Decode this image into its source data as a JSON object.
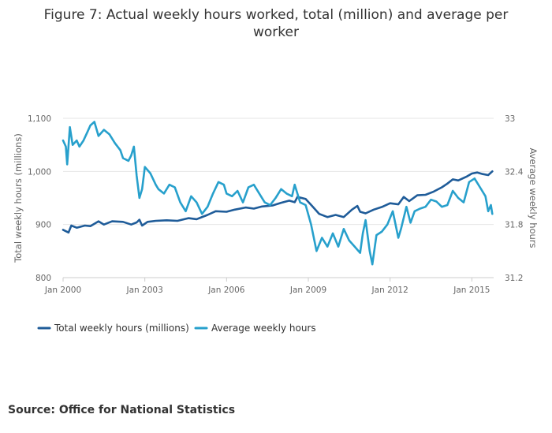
{
  "chart_data": {
    "type": "line",
    "title_lines": [
      "Figure 7: Actual weekly hours worked, total (million) and average per",
      "worker"
    ],
    "x_tick_labels": [
      "Jan 2000",
      "Jan 2003",
      "Jan 2006",
      "Jan 2009",
      "Jan 2012",
      "Jan 2015"
    ],
    "x_ticks": [
      2000,
      2003,
      2006,
      2009,
      2012,
      2015
    ],
    "xlim": [
      2000,
      2015.8
    ],
    "left_axis": {
      "label": "Total weekly hours (millions)",
      "ylim": [
        800,
        1100
      ],
      "ticks": [
        800,
        900,
        1000,
        1100
      ],
      "tick_labels": [
        "800",
        "900",
        "1,000",
        "1,100"
      ]
    },
    "right_axis": {
      "label": "Average weekly hours",
      "ylim": [
        31.2,
        33
      ],
      "ticks": [
        31.2,
        31.8,
        32.4,
        33
      ],
      "tick_labels": [
        "31.2",
        "31.8",
        "32.4",
        "33"
      ]
    },
    "grid": true,
    "legend_position": "bottom-left",
    "series": [
      {
        "name": "Total weekly hours (millions)",
        "axis": "left",
        "color": "#1f5c99",
        "points": [
          [
            2000,
            890
          ],
          [
            2000.2,
            885
          ],
          [
            2000.3,
            898
          ],
          [
            2000.5,
            894
          ],
          [
            2000.8,
            898
          ],
          [
            2001,
            897
          ],
          [
            2001.3,
            906
          ],
          [
            2001.5,
            900
          ],
          [
            2001.8,
            906
          ],
          [
            2002.2,
            905
          ],
          [
            2002.5,
            900
          ],
          [
            2002.7,
            904
          ],
          [
            2002.8,
            909
          ],
          [
            2002.9,
            898
          ],
          [
            2003.1,
            905
          ],
          [
            2003.4,
            907
          ],
          [
            2003.8,
            908
          ],
          [
            2004.2,
            907
          ],
          [
            2004.6,
            912
          ],
          [
            2004.9,
            910
          ],
          [
            2005.3,
            918
          ],
          [
            2005.6,
            925
          ],
          [
            2006,
            924
          ],
          [
            2006.3,
            928
          ],
          [
            2006.7,
            932
          ],
          [
            2007,
            930
          ],
          [
            2007.3,
            934
          ],
          [
            2007.7,
            936
          ],
          [
            2008,
            941
          ],
          [
            2008.3,
            945
          ],
          [
            2008.5,
            942
          ],
          [
            2008.6,
            952
          ],
          [
            2008.9,
            948
          ],
          [
            2009.1,
            937
          ],
          [
            2009.4,
            920
          ],
          [
            2009.7,
            914
          ],
          [
            2010,
            918
          ],
          [
            2010.3,
            914
          ],
          [
            2010.6,
            928
          ],
          [
            2010.8,
            935
          ],
          [
            2010.9,
            924
          ],
          [
            2011.1,
            921
          ],
          [
            2011.4,
            928
          ],
          [
            2011.7,
            933
          ],
          [
            2012,
            940
          ],
          [
            2012.3,
            938
          ],
          [
            2012.5,
            952
          ],
          [
            2012.7,
            944
          ],
          [
            2013,
            955
          ],
          [
            2013.3,
            956
          ],
          [
            2013.6,
            962
          ],
          [
            2013.9,
            970
          ],
          [
            2014.1,
            977
          ],
          [
            2014.3,
            985
          ],
          [
            2014.5,
            983
          ],
          [
            2014.8,
            990
          ],
          [
            2015,
            996
          ],
          [
            2015.2,
            998
          ],
          [
            2015.4,
            995
          ],
          [
            2015.6,
            993
          ],
          [
            2015.75,
            1000
          ]
        ]
      },
      {
        "name": "Average weekly hours",
        "axis": "right",
        "color": "#27a0cc",
        "points": [
          [
            2000,
            32.75
          ],
          [
            2000.1,
            32.68
          ],
          [
            2000.15,
            32.48
          ],
          [
            2000.25,
            32.9
          ],
          [
            2000.35,
            32.7
          ],
          [
            2000.5,
            32.75
          ],
          [
            2000.6,
            32.68
          ],
          [
            2000.75,
            32.75
          ],
          [
            2000.9,
            32.85
          ],
          [
            2001,
            32.92
          ],
          [
            2001.15,
            32.96
          ],
          [
            2001.3,
            32.8
          ],
          [
            2001.5,
            32.87
          ],
          [
            2001.7,
            32.82
          ],
          [
            2001.9,
            32.72
          ],
          [
            2002.1,
            32.64
          ],
          [
            2002.2,
            32.55
          ],
          [
            2002.4,
            32.52
          ],
          [
            2002.5,
            32.58
          ],
          [
            2002.6,
            32.68
          ],
          [
            2002.7,
            32.35
          ],
          [
            2002.8,
            32.1
          ],
          [
            2002.9,
            32.2
          ],
          [
            2003,
            32.45
          ],
          [
            2003.2,
            32.38
          ],
          [
            2003.4,
            32.25
          ],
          [
            2003.5,
            32.2
          ],
          [
            2003.7,
            32.15
          ],
          [
            2003.9,
            32.25
          ],
          [
            2004.1,
            32.22
          ],
          [
            2004.3,
            32.05
          ],
          [
            2004.5,
            31.95
          ],
          [
            2004.7,
            32.12
          ],
          [
            2004.9,
            32.05
          ],
          [
            2005.1,
            31.92
          ],
          [
            2005.3,
            32.0
          ],
          [
            2005.5,
            32.15
          ],
          [
            2005.7,
            32.28
          ],
          [
            2005.9,
            32.25
          ],
          [
            2006,
            32.15
          ],
          [
            2006.2,
            32.12
          ],
          [
            2006.4,
            32.18
          ],
          [
            2006.6,
            32.05
          ],
          [
            2006.8,
            32.22
          ],
          [
            2007,
            32.25
          ],
          [
            2007.2,
            32.15
          ],
          [
            2007.4,
            32.05
          ],
          [
            2007.6,
            32.02
          ],
          [
            2007.8,
            32.1
          ],
          [
            2008,
            32.2
          ],
          [
            2008.2,
            32.15
          ],
          [
            2008.4,
            32.12
          ],
          [
            2008.5,
            32.25
          ],
          [
            2008.7,
            32.05
          ],
          [
            2008.9,
            32.02
          ],
          [
            2009.1,
            31.8
          ],
          [
            2009.3,
            31.5
          ],
          [
            2009.5,
            31.65
          ],
          [
            2009.7,
            31.55
          ],
          [
            2009.9,
            31.7
          ],
          [
            2010.1,
            31.55
          ],
          [
            2010.3,
            31.75
          ],
          [
            2010.5,
            31.62
          ],
          [
            2010.7,
            31.55
          ],
          [
            2010.9,
            31.48
          ],
          [
            2011,
            31.7
          ],
          [
            2011.1,
            31.85
          ],
          [
            2011.25,
            31.5
          ],
          [
            2011.35,
            31.35
          ],
          [
            2011.5,
            31.68
          ],
          [
            2011.7,
            31.72
          ],
          [
            2011.9,
            31.8
          ],
          [
            2012.1,
            31.95
          ],
          [
            2012.3,
            31.65
          ],
          [
            2012.4,
            31.75
          ],
          [
            2012.6,
            32.0
          ],
          [
            2012.75,
            31.82
          ],
          [
            2012.9,
            31.95
          ],
          [
            2013.1,
            31.98
          ],
          [
            2013.3,
            32.0
          ],
          [
            2013.5,
            32.08
          ],
          [
            2013.7,
            32.06
          ],
          [
            2013.9,
            32.0
          ],
          [
            2014.1,
            32.02
          ],
          [
            2014.3,
            32.18
          ],
          [
            2014.5,
            32.1
          ],
          [
            2014.7,
            32.05
          ],
          [
            2014.9,
            32.28
          ],
          [
            2015.1,
            32.32
          ],
          [
            2015.3,
            32.22
          ],
          [
            2015.5,
            32.12
          ],
          [
            2015.6,
            31.95
          ],
          [
            2015.7,
            32.02
          ],
          [
            2015.75,
            31.92
          ]
        ]
      }
    ],
    "source": "Source: Office for National Statistics"
  }
}
